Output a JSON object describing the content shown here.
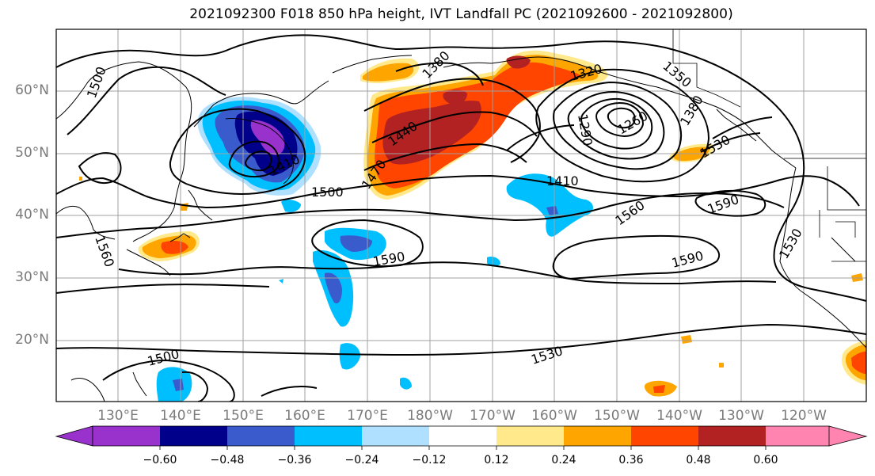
{
  "title": "2021092300 F018 850 hPa height, IVT Landfall PC (2021092600 - 2021092800)",
  "lat_labels": [
    "60°N",
    "50°N",
    "40°N",
    "30°N",
    "20°N"
  ],
  "lon_labels": [
    "130°E",
    "140°E",
    "150°E",
    "160°E",
    "170°E",
    "180°W",
    "170°W",
    "160°W",
    "150°W",
    "140°W",
    "130°W",
    "120°W"
  ],
  "contour_labels": [
    "1500",
    "1380",
    "1320",
    "1350",
    "1290",
    "1260",
    "1380",
    "1440",
    "1410",
    "1470",
    "1500",
    "1530",
    "1410",
    "1560",
    "1590",
    "1560",
    "1590",
    "1590",
    "1530",
    "1500",
    "1530"
  ],
  "colorbar": {
    "ticks": [
      "−0.60",
      "−0.48",
      "−0.36",
      "−0.24",
      "−0.12",
      "0.12",
      "0.24",
      "0.36",
      "0.48",
      "0.60"
    ],
    "colors": [
      "#9932cc",
      "#00008b",
      "#3a5bcc",
      "#00bfff",
      "#b0e0ff",
      "#ffffff",
      "#ffe98a",
      "#ffa500",
      "#ff4500",
      "#b22222",
      "#ff85b0"
    ]
  },
  "colors": {
    "purple": "#9932cc",
    "navy": "#00008b",
    "blue": "#3a5bcc",
    "sky": "#00bfff",
    "lightblue": "#b0e0ff",
    "yellow": "#ffe98a",
    "orange": "#ffa500",
    "redorange": "#ff4500",
    "darkred": "#b22222",
    "pink": "#ff85b0"
  }
}
